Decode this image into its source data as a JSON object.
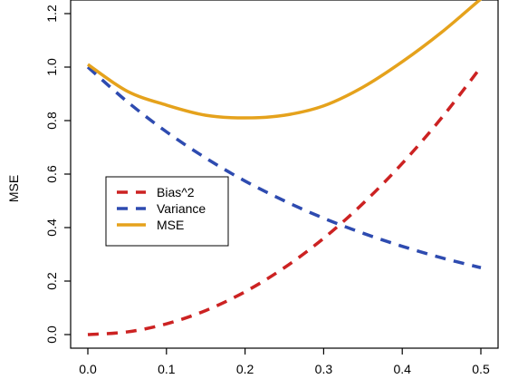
{
  "chart_data": {
    "type": "line",
    "title": "",
    "xlabel": "",
    "ylabel": "MSE",
    "xlim": [
      0.0,
      0.5
    ],
    "ylim": [
      0.0,
      1.2
    ],
    "xticks": [
      "0.0",
      "0.1",
      "0.2",
      "0.3",
      "0.4",
      "0.5"
    ],
    "yticks": [
      "0.0",
      "0.2",
      "0.4",
      "0.6",
      "0.8",
      "1.0",
      "1.2"
    ],
    "grid": false,
    "legend_position": "left",
    "x": [
      0.0,
      0.05,
      0.1,
      0.15,
      0.2,
      0.25,
      0.3,
      0.35,
      0.4,
      0.45,
      0.5
    ],
    "series": [
      {
        "name": "Bias^2",
        "color": "#cc2222",
        "style": "dashed",
        "values": [
          0.0,
          0.01,
          0.04,
          0.09,
          0.16,
          0.25,
          0.36,
          0.49,
          0.64,
          0.81,
          1.0
        ]
      },
      {
        "name": "Variance",
        "color": "#2e4bb0",
        "style": "dashed",
        "values": [
          1.0,
          0.871,
          0.758,
          0.66,
          0.574,
          0.5,
          0.435,
          0.379,
          0.33,
          0.287,
          0.25
        ]
      },
      {
        "name": "MSE",
        "color": "#e5a21c",
        "style": "solid",
        "values": [
          1.01,
          0.91,
          0.858,
          0.82,
          0.81,
          0.82,
          0.855,
          0.925,
          1.02,
          1.13,
          1.255
        ]
      }
    ]
  }
}
